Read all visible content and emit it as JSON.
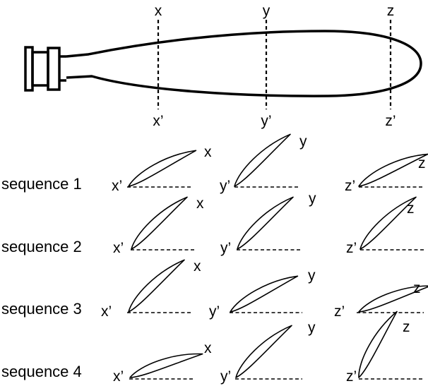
{
  "top_labels": [
    "x",
    "y",
    "z"
  ],
  "bottom_labels": [
    "x’",
    "y’",
    "z’"
  ],
  "sequences": [
    {
      "label": "sequence 1",
      "foils": [
        {
          "start": "x’",
          "end": "x",
          "pitch_deg": 28
        },
        {
          "start": "y’",
          "end": "y",
          "pitch_deg": 43
        },
        {
          "start": "z’",
          "end": "z",
          "pitch_deg": 25
        }
      ]
    },
    {
      "label": "sequence 2",
      "foils": [
        {
          "start": "x’",
          "end": "x",
          "pitch_deg": 43
        },
        {
          "start": "y’",
          "end": "y",
          "pitch_deg": 43
        },
        {
          "start": "z’",
          "end": "z",
          "pitch_deg": 43
        }
      ]
    },
    {
      "label": "sequence 3",
      "foils": [
        {
          "start": "x’",
          "end": "x",
          "pitch_deg": 43
        },
        {
          "start": "y’",
          "end": "y",
          "pitch_deg": 28
        },
        {
          "start": "z’",
          "end": "z",
          "pitch_deg": 20
        }
      ]
    },
    {
      "label": "sequence 4",
      "foils": [
        {
          "start": "x’",
          "end": "x",
          "pitch_deg": 18
        },
        {
          "start": "y’",
          "end": "y",
          "pitch_deg": 43
        },
        {
          "start": "z’",
          "end": "z",
          "pitch_deg": 60
        }
      ]
    }
  ]
}
